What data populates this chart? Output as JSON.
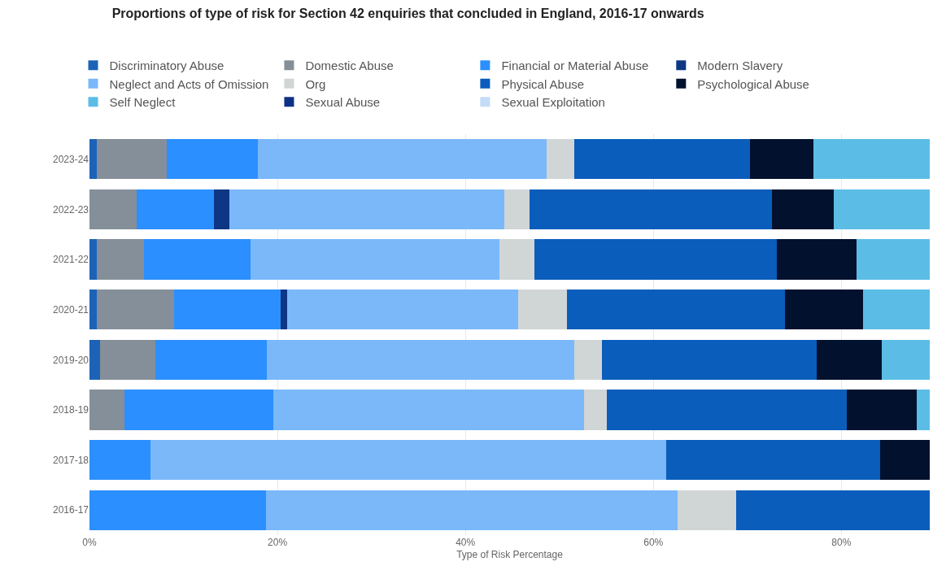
{
  "chart_data": {
    "type": "bar",
    "orientation": "horizontal",
    "stacked": true,
    "title": "Proportions of type of risk for Section 42 enquiries that concluded in England, 2016-17 onwards",
    "xlabel": "Type of Risk Percentage",
    "categories": [
      "2023-24",
      "2022-23",
      "2021-22",
      "2020-21",
      "2019-20",
      "2018-19",
      "2017-18",
      "2016-17"
    ],
    "xlim": [
      0,
      89.4
    ],
    "xticks": [
      {
        "value": 0,
        "label": "0%"
      },
      {
        "value": 20,
        "label": "20%"
      },
      {
        "value": 40,
        "label": "40%"
      },
      {
        "value": 60,
        "label": "60%"
      },
      {
        "value": 80,
        "label": "80%"
      }
    ],
    "grid": "x",
    "legend": "top",
    "series": [
      {
        "name": "Discriminatory Abuse",
        "color": "#1c63b7",
        "values": [
          0.8,
          null,
          0.8,
          0.8,
          1.1,
          null,
          null,
          null
        ]
      },
      {
        "name": "Domestic Abuse",
        "color": "#858f99",
        "values": [
          7.4,
          5.0,
          5.0,
          8.2,
          5.9,
          3.7,
          null,
          null
        ]
      },
      {
        "name": "Financial or Material Abuse",
        "color": "#2b8fff",
        "values": [
          9.7,
          8.2,
          11.3,
          11.3,
          11.9,
          15.9,
          6.5,
          18.8
        ]
      },
      {
        "name": "Modern Slavery",
        "color": "#0d3685",
        "values": [
          null,
          1.7,
          null,
          0.7,
          null,
          null,
          null,
          null
        ]
      },
      {
        "name": "Neglect and Acts of Omission",
        "color": "#7ab8fa",
        "values": [
          30.7,
          29.2,
          26.5,
          24.6,
          32.7,
          33.0,
          54.9,
          43.8
        ]
      },
      {
        "name": "Org",
        "color": "#d0d5d6",
        "values": [
          3.0,
          2.7,
          3.7,
          5.2,
          2.9,
          2.4,
          null,
          6.2
        ]
      },
      {
        "name": "Physical Abuse",
        "color": "#0a5dbb",
        "values": [
          18.7,
          25.8,
          25.8,
          23.2,
          22.9,
          25.6,
          22.7,
          20.6
        ]
      },
      {
        "name": "Psychological Abuse",
        "color": "#01112e",
        "values": [
          6.7,
          6.6,
          8.5,
          8.3,
          6.9,
          7.4,
          5.3,
          null
        ]
      },
      {
        "name": "Self Neglect",
        "color": "#5bbde6",
        "values": [
          12.4,
          10.2,
          7.8,
          7.1,
          5.1,
          1.4,
          null,
          null
        ]
      },
      {
        "name": "Sexual Abuse",
        "color": "#0d3285",
        "values": [
          null,
          null,
          null,
          null,
          null,
          null,
          null,
          null
        ]
      },
      {
        "name": "Sexual Exploitation",
        "color": "#c4dcf7",
        "values": [
          null,
          null,
          null,
          null,
          null,
          null,
          null,
          null
        ]
      }
    ]
  }
}
